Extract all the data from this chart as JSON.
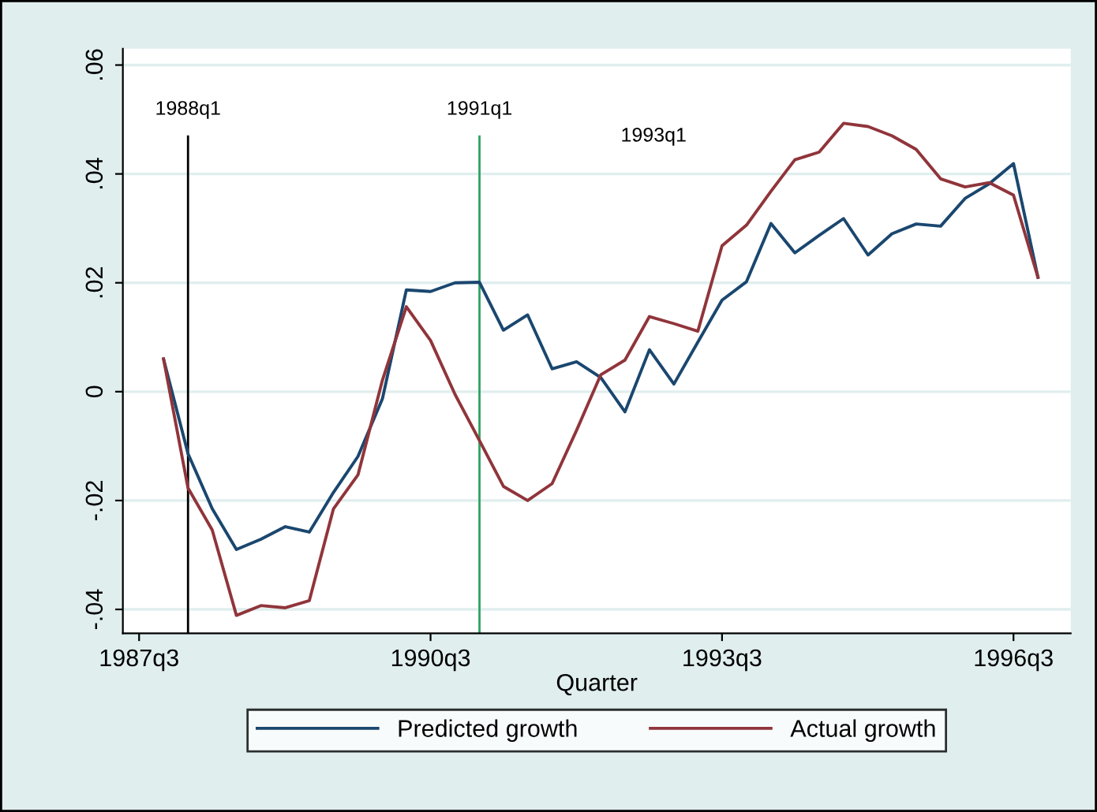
{
  "chart_data": {
    "type": "line",
    "xlabel": "Quarter",
    "x": [
      "1987-10",
      "1988-01",
      "1988-04",
      "1988-07",
      "1988-10",
      "1989-01",
      "1989-04",
      "1989-07",
      "1989-10",
      "1990-01",
      "1990-04",
      "1990-07",
      "1990-10",
      "1991-01",
      "1991-04",
      "1991-07",
      "1991-10",
      "1992-01",
      "1992-04",
      "1992-07",
      "1992-10",
      "1993-01",
      "1993-04",
      "1993-07",
      "1993-10",
      "1994-01",
      "1994-04",
      "1994-07",
      "1994-10",
      "1995-01",
      "1995-04",
      "1995-07",
      "1995-10",
      "1996-01",
      "1996-04",
      "1996-07",
      "1996-10"
    ],
    "series": [
      {
        "name": "Predicted growth",
        "color": "#1a476f",
        "values": [
          0.006,
          -0.0114,
          -0.0215,
          -0.029,
          -0.0271,
          -0.0248,
          -0.0258,
          -0.0185,
          -0.0119,
          -0.0013,
          0.0187,
          0.0184,
          0.02,
          0.0201,
          0.0113,
          0.0141,
          0.0042,
          0.0055,
          0.0026,
          -0.0037,
          0.0077,
          0.0014,
          0.0091,
          0.0168,
          0.0202,
          0.0309,
          0.0255,
          0.0287,
          0.0318,
          0.0251,
          0.029,
          0.0308,
          0.0304,
          0.0355,
          0.0382,
          0.0419,
          0.021
        ]
      },
      {
        "name": "Actual growth",
        "color": "#90353b",
        "values": [
          0.006,
          -0.0177,
          -0.0254,
          -0.0411,
          -0.0393,
          -0.0397,
          -0.0384,
          -0.0215,
          -0.0153,
          0.0021,
          0.0156,
          0.0094,
          -0.0005,
          -0.009,
          -0.0174,
          -0.02,
          -0.0169,
          -0.0071,
          0.0031,
          0.0058,
          0.0138,
          0.0125,
          0.0111,
          0.0268,
          0.0306,
          0.0368,
          0.0426,
          0.044,
          0.0493,
          0.0487,
          0.047,
          0.0445,
          0.0391,
          0.0376,
          0.0384,
          0.0361,
          0.021
        ]
      }
    ],
    "xlim": [
      "1987-05-01",
      "1997-02-01"
    ],
    "xticks": [
      {
        "value": "1987-07",
        "label": "1987q3"
      },
      {
        "value": "1990-07",
        "label": "1990q3"
      },
      {
        "value": "1993-07",
        "label": "1993q3"
      },
      {
        "value": "1996-07",
        "label": "1996q3"
      }
    ],
    "ylim": [
      -0.0444,
      0.063
    ],
    "yticks": [
      {
        "value": -0.04,
        "label": "-.04"
      },
      {
        "value": -0.02,
        "label": "-.02"
      },
      {
        "value": 0,
        "label": "0"
      },
      {
        "value": 0.02,
        "label": ".02"
      },
      {
        "value": 0.04,
        "label": ".04"
      },
      {
        "value": 0.06,
        "label": ".06"
      }
    ],
    "ref_lines": [
      {
        "axis": "x",
        "value": "1988-01",
        "label": "1988q1",
        "color": "#000000"
      },
      {
        "axis": "x",
        "value": "1991-01",
        "label": "1991q1",
        "color": "#2ca25f"
      }
    ],
    "annotations": [
      "1993q1"
    ],
    "grid": "y",
    "legend": "bottom",
    "line_style": "solid",
    "marker": "none"
  }
}
